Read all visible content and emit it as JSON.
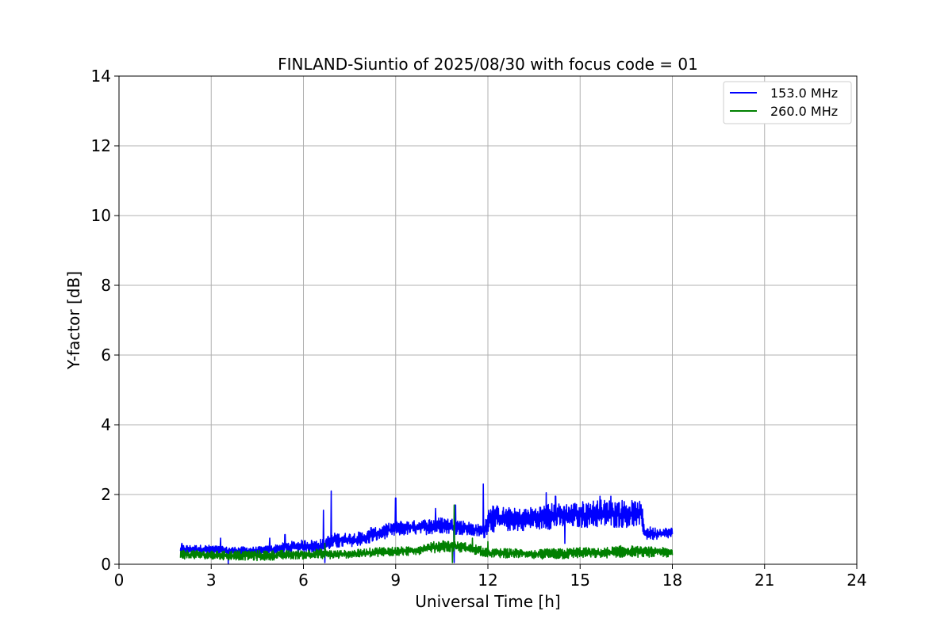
{
  "chart_data": {
    "type": "line",
    "title": "FINLAND-Siuntio of 2025/08/30 with focus code = 01",
    "xlabel": "Universal Time [h]",
    "ylabel": "Y-factor [dB]",
    "xlim": [
      0,
      24
    ],
    "ylim": [
      0,
      14
    ],
    "xticks": [
      "0",
      "3",
      "6",
      "9",
      "12",
      "15",
      "18",
      "21",
      "24"
    ],
    "yticks": [
      "0",
      "2",
      "4",
      "6",
      "8",
      "10",
      "12",
      "14"
    ],
    "grid": true,
    "legend_position": "top-right",
    "series": [
      {
        "name": "153.0 MHz",
        "color": "#0000ff",
        "low": [
          [
            2.0,
            0.3
          ],
          [
            2.5,
            0.32
          ],
          [
            3.0,
            0.3
          ],
          [
            3.5,
            0.25
          ],
          [
            4.0,
            0.28
          ],
          [
            4.5,
            0.25
          ],
          [
            5.0,
            0.3
          ],
          [
            5.5,
            0.3
          ],
          [
            6.0,
            0.35
          ],
          [
            6.5,
            0.35
          ],
          [
            7.0,
            0.45
          ],
          [
            7.5,
            0.5
          ],
          [
            8.0,
            0.55
          ],
          [
            8.5,
            0.7
          ],
          [
            9.0,
            0.8
          ],
          [
            9.5,
            0.85
          ],
          [
            10.0,
            0.85
          ],
          [
            10.5,
            0.9
          ],
          [
            11.0,
            0.85
          ],
          [
            11.5,
            0.8
          ],
          [
            11.9,
            0.75
          ],
          [
            12.0,
            0.9
          ],
          [
            12.5,
            0.95
          ],
          [
            13.0,
            0.95
          ],
          [
            13.5,
            1.0
          ],
          [
            14.0,
            1.0
          ],
          [
            14.5,
            1.05
          ],
          [
            15.0,
            1.05
          ],
          [
            15.5,
            1.05
          ],
          [
            16.0,
            1.05
          ],
          [
            16.5,
            1.05
          ],
          [
            17.0,
            1.05
          ],
          [
            17.1,
            0.7
          ],
          [
            17.5,
            0.7
          ],
          [
            18.0,
            0.75
          ]
        ],
        "high": [
          [
            2.0,
            0.55
          ],
          [
            2.5,
            0.55
          ],
          [
            3.0,
            0.55
          ],
          [
            3.5,
            0.5
          ],
          [
            4.0,
            0.5
          ],
          [
            4.5,
            0.5
          ],
          [
            5.0,
            0.55
          ],
          [
            5.5,
            0.65
          ],
          [
            6.0,
            0.7
          ],
          [
            6.5,
            0.7
          ],
          [
            7.0,
            0.9
          ],
          [
            7.5,
            0.9
          ],
          [
            8.0,
            0.95
          ],
          [
            8.5,
            1.1
          ],
          [
            9.0,
            1.25
          ],
          [
            9.5,
            1.25
          ],
          [
            10.0,
            1.3
          ],
          [
            10.5,
            1.35
          ],
          [
            11.0,
            1.3
          ],
          [
            11.5,
            1.2
          ],
          [
            11.9,
            1.1
          ],
          [
            12.0,
            1.75
          ],
          [
            12.5,
            1.65
          ],
          [
            13.0,
            1.6
          ],
          [
            13.5,
            1.65
          ],
          [
            14.0,
            1.75
          ],
          [
            14.5,
            1.75
          ],
          [
            15.0,
            1.8
          ],
          [
            15.5,
            1.85
          ],
          [
            16.0,
            1.85
          ],
          [
            16.5,
            1.85
          ],
          [
            17.0,
            1.8
          ],
          [
            17.1,
            1.1
          ],
          [
            17.5,
            1.05
          ],
          [
            18.0,
            1.05
          ]
        ],
        "spikes": [
          [
            2.05,
            0.6
          ],
          [
            3.3,
            0.75
          ],
          [
            3.55,
            0.02
          ],
          [
            4.9,
            0.75
          ],
          [
            5.4,
            0.85
          ],
          [
            6.65,
            1.55
          ],
          [
            6.7,
            0.05
          ],
          [
            6.9,
            2.1
          ],
          [
            8.2,
            1.05
          ],
          [
            9.0,
            1.9
          ],
          [
            10.3,
            1.6
          ],
          [
            10.95,
            1.7
          ],
          [
            10.9,
            0.05
          ],
          [
            11.85,
            2.3
          ],
          [
            13.9,
            2.05
          ],
          [
            14.2,
            1.95
          ],
          [
            14.5,
            0.6
          ],
          [
            15.65,
            1.95
          ],
          [
            16.0,
            1.95
          ]
        ]
      },
      {
        "name": "260.0 MHz",
        "color": "#008000",
        "low": [
          [
            2.0,
            0.15
          ],
          [
            2.5,
            0.15
          ],
          [
            3.0,
            0.15
          ],
          [
            3.5,
            0.12
          ],
          [
            4.0,
            0.12
          ],
          [
            4.5,
            0.1
          ],
          [
            5.0,
            0.12
          ],
          [
            5.5,
            0.15
          ],
          [
            6.0,
            0.15
          ],
          [
            6.5,
            0.15
          ],
          [
            7.0,
            0.15
          ],
          [
            7.5,
            0.18
          ],
          [
            8.0,
            0.2
          ],
          [
            8.5,
            0.2
          ],
          [
            9.0,
            0.25
          ],
          [
            9.5,
            0.25
          ],
          [
            10.0,
            0.3
          ],
          [
            10.5,
            0.35
          ],
          [
            11.0,
            0.35
          ],
          [
            11.5,
            0.3
          ],
          [
            12.0,
            0.2
          ],
          [
            12.5,
            0.18
          ],
          [
            13.0,
            0.18
          ],
          [
            13.5,
            0.15
          ],
          [
            14.0,
            0.15
          ],
          [
            14.5,
            0.15
          ],
          [
            15.0,
            0.18
          ],
          [
            15.5,
            0.18
          ],
          [
            16.0,
            0.18
          ],
          [
            16.5,
            0.2
          ],
          [
            17.0,
            0.2
          ],
          [
            17.5,
            0.2
          ],
          [
            18.0,
            0.2
          ]
        ],
        "high": [
          [
            2.0,
            0.4
          ],
          [
            2.5,
            0.4
          ],
          [
            3.0,
            0.38
          ],
          [
            3.5,
            0.38
          ],
          [
            4.0,
            0.4
          ],
          [
            4.5,
            0.4
          ],
          [
            5.0,
            0.4
          ],
          [
            5.5,
            0.4
          ],
          [
            6.0,
            0.4
          ],
          [
            6.5,
            0.45
          ],
          [
            7.0,
            0.4
          ],
          [
            7.5,
            0.4
          ],
          [
            8.0,
            0.45
          ],
          [
            8.5,
            0.5
          ],
          [
            9.0,
            0.5
          ],
          [
            9.5,
            0.5
          ],
          [
            10.0,
            0.6
          ],
          [
            10.5,
            0.7
          ],
          [
            11.0,
            0.65
          ],
          [
            11.5,
            0.6
          ],
          [
            12.0,
            0.45
          ],
          [
            12.5,
            0.45
          ],
          [
            13.0,
            0.45
          ],
          [
            13.5,
            0.4
          ],
          [
            14.0,
            0.45
          ],
          [
            14.5,
            0.45
          ],
          [
            15.0,
            0.5
          ],
          [
            15.5,
            0.45
          ],
          [
            16.0,
            0.5
          ],
          [
            16.5,
            0.55
          ],
          [
            17.0,
            0.5
          ],
          [
            17.5,
            0.5
          ],
          [
            18.0,
            0.45
          ]
        ],
        "spikes": [
          [
            10.9,
            1.7
          ],
          [
            10.85,
            0.05
          ],
          [
            11.5,
            0.75
          ],
          [
            12.0,
            0.65
          ],
          [
            6.7,
            0.6
          ]
        ]
      }
    ]
  }
}
